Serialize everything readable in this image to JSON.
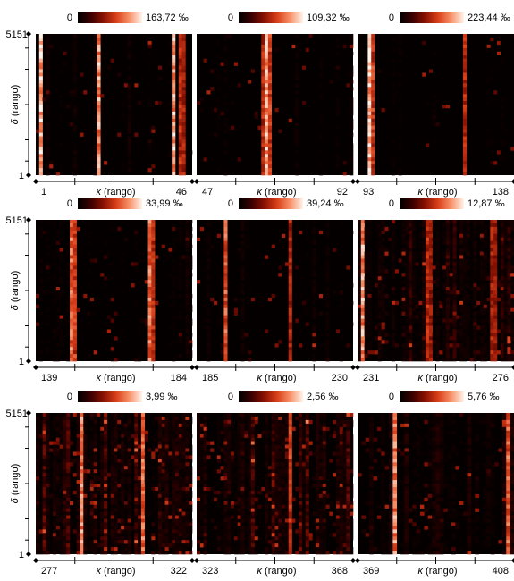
{
  "figure": {
    "ylabel_symbol": "δ",
    "ylabel_text": " (rango)",
    "xlabel_symbol": "κ",
    "xlabel_text": " (rango)",
    "colormap": [
      "#000000",
      "#3a0000",
      "#7a0c02",
      "#c42a0c",
      "#ef6a3a",
      "#fbb996",
      "#fff2e8"
    ]
  },
  "chart_data": [
    {
      "type": "heatmap",
      "colorbar_min": "0",
      "colorbar_max": "163,72 ‰",
      "ylim": [
        1,
        5151
      ],
      "y_ticks": [
        "5151",
        "1"
      ],
      "x_range": [
        1,
        46
      ],
      "x_ticks": [
        "1",
        "46"
      ],
      "n_columns": 46,
      "bright_columns": [
        {
          "col": 1,
          "level": 0.95
        },
        {
          "col": 18,
          "level": 0.85
        },
        {
          "col": 40,
          "level": 0.9
        },
        {
          "col": 42,
          "level": 0.55
        },
        {
          "col": 43,
          "level": 0.5
        }
      ],
      "noise": 0.12
    },
    {
      "type": "heatmap",
      "colorbar_min": "0",
      "colorbar_max": "109,32 ‰",
      "ylim": [
        1,
        5151
      ],
      "y_ticks": [
        "5151",
        "1"
      ],
      "x_range": [
        47,
        92
      ],
      "x_ticks": [
        "47",
        "92"
      ],
      "n_columns": 46,
      "bright_columns": [
        {
          "col": 19,
          "level": 0.55
        },
        {
          "col": 20,
          "level": 0.85
        },
        {
          "col": 21,
          "level": 0.6
        }
      ],
      "noise": 0.08
    },
    {
      "type": "heatmap",
      "colorbar_min": "0",
      "colorbar_max": "223,44 ‰",
      "ylim": [
        1,
        5151
      ],
      "y_ticks": [
        "5151",
        "1"
      ],
      "x_range": [
        93,
        138
      ],
      "x_ticks": [
        "93",
        "138"
      ],
      "n_columns": 46,
      "bright_columns": [
        {
          "col": 3,
          "level": 0.95
        },
        {
          "col": 4,
          "level": 0.6
        },
        {
          "col": 31,
          "level": 0.55
        }
      ],
      "noise": 0.06
    },
    {
      "type": "heatmap",
      "colorbar_min": "0",
      "colorbar_max": "33,99 ‰",
      "ylim": [
        1,
        5151
      ],
      "y_ticks": [
        "5151",
        "1"
      ],
      "x_range": [
        139,
        184
      ],
      "x_ticks": [
        "139",
        "184"
      ],
      "n_columns": 46,
      "bright_columns": [
        {
          "col": 10,
          "level": 0.75
        },
        {
          "col": 11,
          "level": 0.6
        },
        {
          "col": 33,
          "level": 0.75
        },
        {
          "col": 34,
          "level": 0.55
        }
      ],
      "noise": 0.15
    },
    {
      "type": "heatmap",
      "colorbar_min": "0",
      "colorbar_max": "39,24 ‰",
      "ylim": [
        1,
        5151
      ],
      "y_ticks": [
        "5151",
        "1"
      ],
      "x_range": [
        185,
        230
      ],
      "x_ticks": [
        "185",
        "230"
      ],
      "n_columns": 46,
      "bright_columns": [
        {
          "col": 8,
          "level": 0.7
        },
        {
          "col": 27,
          "level": 0.5
        }
      ],
      "noise": 0.12
    },
    {
      "type": "heatmap",
      "colorbar_min": "0",
      "colorbar_max": "12,87 ‰",
      "ylim": [
        1,
        5151
      ],
      "y_ticks": [
        "5151",
        "1"
      ],
      "x_range": [
        231,
        276
      ],
      "x_ticks": [
        "231",
        "276"
      ],
      "n_columns": 46,
      "bright_columns": [
        {
          "col": 1,
          "level": 0.85
        },
        {
          "col": 20,
          "level": 0.55
        },
        {
          "col": 21,
          "level": 0.45
        },
        {
          "col": 39,
          "level": 0.5
        },
        {
          "col": 40,
          "level": 0.45
        }
      ],
      "noise": 0.3
    },
    {
      "type": "heatmap",
      "colorbar_min": "0",
      "colorbar_max": "3,99 ‰",
      "ylim": [
        1,
        5151
      ],
      "y_ticks": [
        "5151",
        "1"
      ],
      "x_range": [
        277,
        322
      ],
      "x_ticks": [
        "277",
        "322"
      ],
      "n_columns": 46,
      "bright_columns": [
        {
          "col": 13,
          "level": 0.8
        },
        {
          "col": 31,
          "level": 0.75
        }
      ],
      "noise": 0.45
    },
    {
      "type": "heatmap",
      "colorbar_min": "0",
      "colorbar_max": "2,56 ‰",
      "ylim": [
        1,
        5151
      ],
      "y_ticks": [
        "5151",
        "1"
      ],
      "x_range": [
        323,
        368
      ],
      "x_ticks": [
        "323",
        "368"
      ],
      "n_columns": 46,
      "bright_columns": [
        {
          "col": 27,
          "level": 0.6
        }
      ],
      "noise": 0.45
    },
    {
      "type": "heatmap",
      "colorbar_min": "0",
      "colorbar_max": "5,76 ‰",
      "ylim": [
        1,
        5151
      ],
      "y_ticks": [
        "5151",
        "1"
      ],
      "x_range": [
        369,
        408
      ],
      "x_ticks": [
        "369",
        "408"
      ],
      "n_columns": 40,
      "bright_columns": [
        {
          "col": 9,
          "level": 0.8
        },
        {
          "col": 38,
          "level": 0.7
        }
      ],
      "noise": 0.2
    }
  ]
}
